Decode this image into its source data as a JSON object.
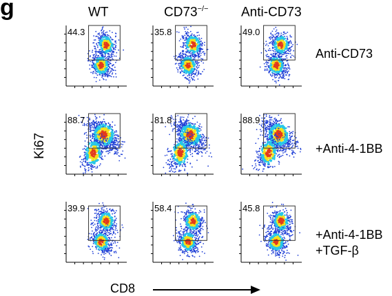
{
  "figure": {
    "panel_letter": "g",
    "x_axis_label": "CD8",
    "y_axis_label": "Ki67",
    "columns": [
      {
        "label": "WT",
        "superscript": ""
      },
      {
        "label": "CD73",
        "superscript": "−/−"
      },
      {
        "label": "Anti-CD73",
        "superscript": ""
      }
    ],
    "rows": [
      {
        "label_lines": [
          "Anti-CD73"
        ]
      },
      {
        "label_lines": [
          "+Anti-4-1BB"
        ]
      },
      {
        "label_lines": [
          "+Anti-4-1BB",
          "+TGF-β"
        ]
      }
    ]
  },
  "chart_data": {
    "type": "scatter",
    "subtype": "flow-cytometry-density",
    "x_label": "CD8",
    "y_label": "Ki67",
    "gate_percent": [
      [
        "44.3",
        "35.8",
        "49.0"
      ],
      [
        "88.7",
        "81.8",
        "88.9"
      ],
      [
        "39.9",
        "58.4",
        "45.8"
      ]
    ],
    "colors": {
      "density_low": "#1f3fd6",
      "density_mid": "#27c7e8",
      "density_high": "#f4e21c",
      "density_peak": "#e33b1c",
      "axes": "#000000"
    }
  }
}
